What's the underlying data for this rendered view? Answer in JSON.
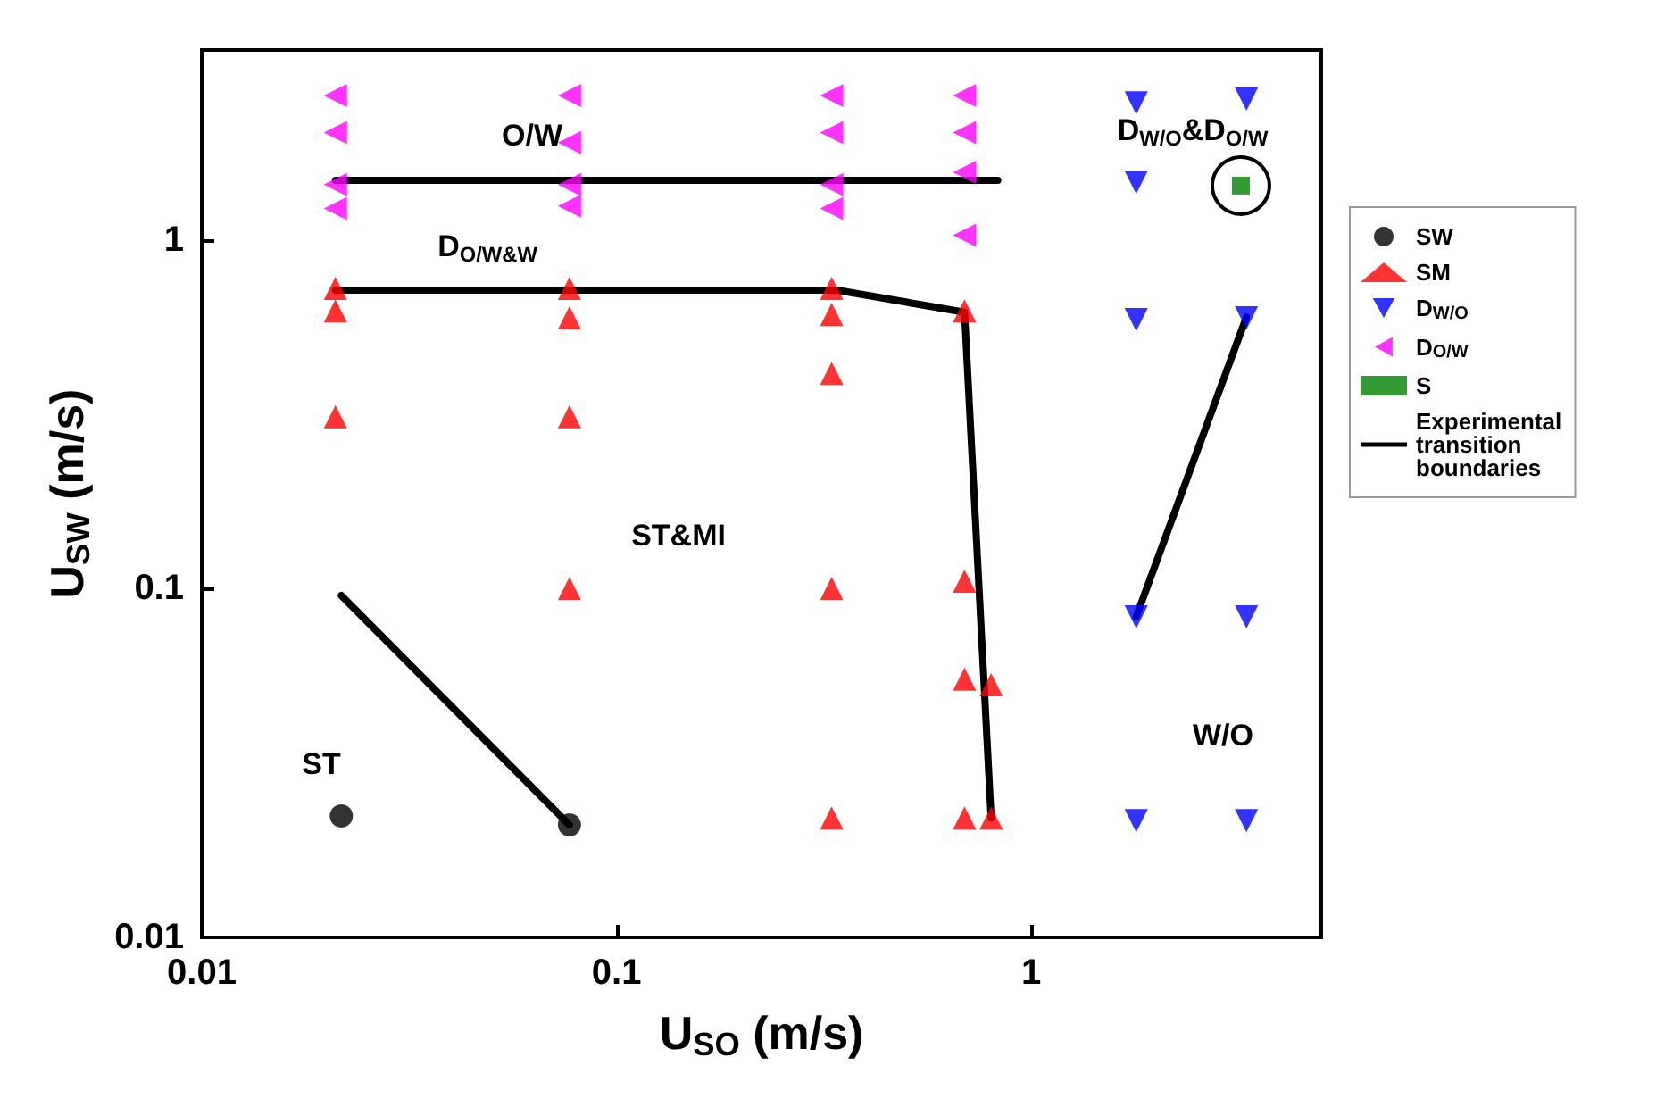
{
  "chart_data": {
    "type": "scatter",
    "xlabel": "U$_{SO}$ (m/s)",
    "ylabel": "U$_{SW}$ (m/s)",
    "log": "xy",
    "xlim": [
      0.01,
      5
    ],
    "ylim": [
      0.01,
      3.5
    ],
    "xticks": [
      0.01,
      0.1,
      1
    ],
    "yticks": [
      0.01,
      0.1,
      1
    ],
    "grid": false,
    "legend": "right",
    "series": [
      {
        "name": "SW",
        "color": "#000000",
        "marker": "circle",
        "x": [
          0.0217,
          0.077
        ],
        "values": [
          0.0223,
          0.021
        ]
      },
      {
        "name": "SM",
        "color": "#ff0000",
        "marker": "triangle",
        "x": [
          0.021,
          0.021,
          0.021,
          0.077,
          0.077,
          0.077,
          0.077,
          0.33,
          0.33,
          0.33,
          0.33,
          0.33,
          0.69,
          0.69,
          0.69,
          0.69,
          0.8,
          0.8
        ],
        "values": [
          0.726,
          0.625,
          0.311,
          0.726,
          0.597,
          0.311,
          0.1,
          0.726,
          0.611,
          0.414,
          0.1,
          0.022,
          0.625,
          0.105,
          0.055,
          0.022,
          0.053,
          0.022
        ]
      },
      {
        "name": "D$_{W/O}$",
        "color": "#0000ff",
        "marker": "triangle-down",
        "x": [
          1.79,
          1.79,
          1.79,
          1.79,
          1.79,
          3.3,
          3.3,
          3.3,
          3.3
        ],
        "values": [
          2.47,
          1.46,
          0.59,
          0.083,
          0.0216,
          2.53,
          0.597,
          0.083,
          0.0216
        ]
      },
      {
        "name": "D$_{O/W}$",
        "color": "#ff00ff",
        "marker": "triangle-left",
        "x": [
          0.021,
          0.021,
          0.021,
          0.021,
          0.077,
          0.077,
          0.077,
          0.077,
          0.33,
          0.33,
          0.33,
          0.33,
          0.69,
          0.69,
          0.69,
          0.69
        ],
        "values": [
          2.59,
          2.03,
          1.44,
          1.23,
          2.59,
          1.9,
          1.44,
          1.25,
          2.59,
          2.03,
          1.44,
          1.23,
          2.59,
          2.03,
          1.56,
          1.03
        ]
      },
      {
        "name": "S",
        "color": "#008000",
        "marker": "square",
        "x": [
          3.2
        ],
        "values": [
          1.43
        ]
      },
      {
        "name": "Experimental transition boundaries",
        "type": "line",
        "color": "#000000",
        "marker": "none",
        "line_style": "solid",
        "x": [
          0.021,
          0.83,
          null,
          0.021,
          0.34,
          0.69,
          0.8,
          null,
          0.0217,
          0.077,
          null,
          1.79,
          3.3
        ],
        "values": [
          1.48,
          1.48,
          null,
          0.717,
          0.717,
          0.62,
          0.022,
          null,
          0.0955,
          0.021,
          null,
          0.083,
          0.6
        ]
      }
    ],
    "annotations": [
      "O/W",
      "D$_{O/W&W}$",
      "ST&MI",
      "ST",
      "W/O",
      "D$_{W/O}$&D$_{O/W}$"
    ]
  }
}
